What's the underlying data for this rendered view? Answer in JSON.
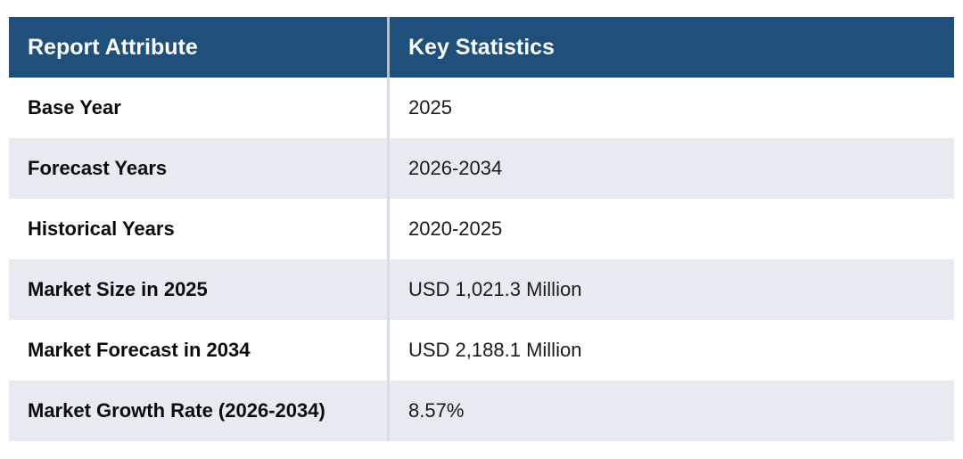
{
  "table": {
    "header": {
      "attribute_label": "Report Attribute",
      "statistics_label": "Key Statistics"
    },
    "rows": [
      {
        "attribute": "Base Year",
        "value": "2025"
      },
      {
        "attribute": "Forecast Years",
        "value": "2026-2034"
      },
      {
        "attribute": "Historical Years",
        "value": "2020-2025"
      },
      {
        "attribute": "Market Size in 2025",
        "value": "USD 1,021.3 Million"
      },
      {
        "attribute": "Market Forecast in 2034",
        "value": "USD 2,188.1 Million"
      },
      {
        "attribute": "Market Growth Rate (2026-2034)",
        "value": "8.57%"
      }
    ],
    "colors": {
      "header_bg": "#1f4f7b",
      "header_text": "#ffffff",
      "row_bg": "#ffffff",
      "row_alt_bg": "#e8eaf2",
      "divider": "#d9dce4",
      "header_divider": "#b3c2cf",
      "attribute_text": "#0b0b0b",
      "value_text": "#1b1b1b"
    }
  },
  "chart_data": {
    "type": "table",
    "title": "",
    "columns": [
      "Report Attribute",
      "Key Statistics"
    ],
    "rows": [
      [
        "Base Year",
        "2025"
      ],
      [
        "Forecast Years",
        "2026-2034"
      ],
      [
        "Historical Years",
        "2020-2025"
      ],
      [
        "Market Size in 2025",
        "USD 1,021.3 Million"
      ],
      [
        "Market Forecast in 2034",
        "USD 2,188.1 Million"
      ],
      [
        "Market Growth Rate (2026-2034)",
        "8.57%"
      ]
    ]
  }
}
